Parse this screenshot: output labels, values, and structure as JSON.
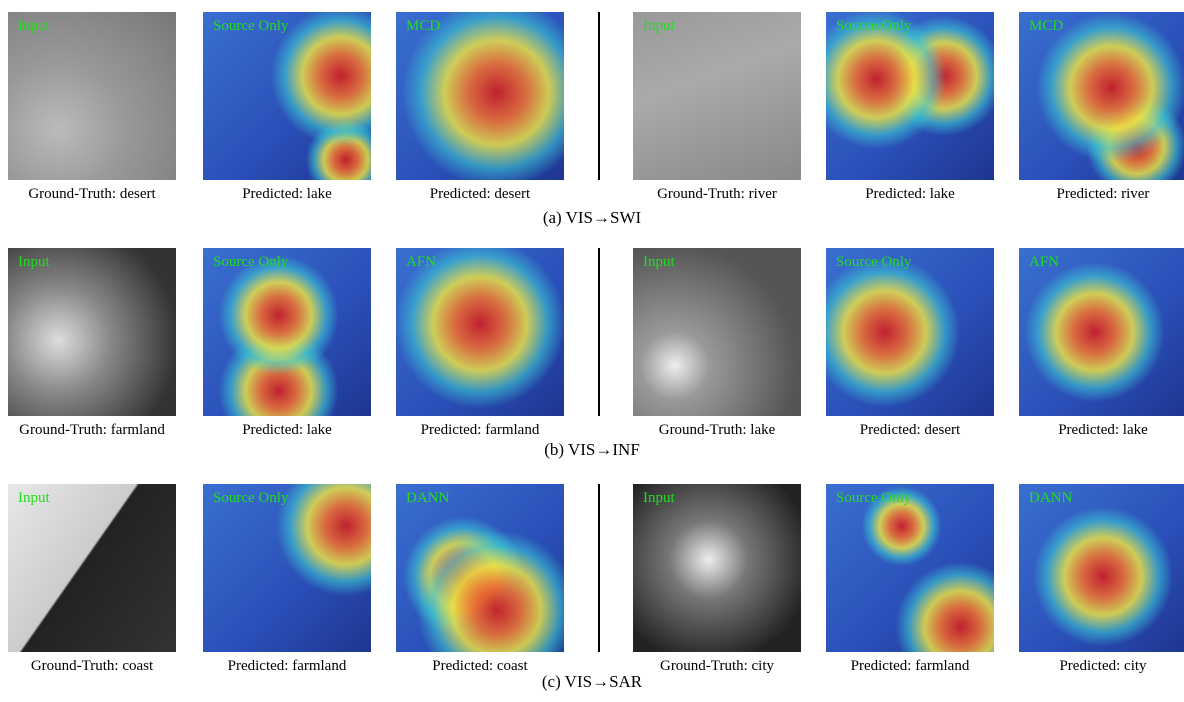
{
  "rows": [
    {
      "caption": "(a) VIS→SWI",
      "panels": [
        {
          "overlay": "Input",
          "label": "Ground-Truth: desert"
        },
        {
          "overlay": "Source Only",
          "label": "Predicted: lake"
        },
        {
          "overlay": "MCD",
          "label": "Predicted: desert"
        },
        {
          "overlay": "Input",
          "label": "Ground-Truth: river"
        },
        {
          "overlay": "Source Only",
          "label": "Predicted: lake"
        },
        {
          "overlay": "MCD",
          "label": "Predicted: river"
        }
      ]
    },
    {
      "caption": "(b) VIS→INF",
      "panels": [
        {
          "overlay": "Input",
          "label": "Ground-Truth: farmland"
        },
        {
          "overlay": "Source Only",
          "label": "Predicted: lake"
        },
        {
          "overlay": "AFN",
          "label": "Predicted: farmland"
        },
        {
          "overlay": "Input",
          "label": "Ground-Truth: lake"
        },
        {
          "overlay": "Source Only",
          "label": "Predicted: desert"
        },
        {
          "overlay": "AFN",
          "label": "Predicted: lake"
        }
      ]
    },
    {
      "caption": "(c) VIS→SAR",
      "panels": [
        {
          "overlay": "Input",
          "label": "Ground-Truth: coast"
        },
        {
          "overlay": "Source Only",
          "label": "Predicted: farmland"
        },
        {
          "overlay": "DANN",
          "label": "Predicted: coast"
        },
        {
          "overlay": "Input",
          "label": "Ground-Truth: city"
        },
        {
          "overlay": "Source Only",
          "label": "Predicted: farmland"
        },
        {
          "overlay": "DANN",
          "label": "Predicted: city"
        }
      ]
    }
  ]
}
